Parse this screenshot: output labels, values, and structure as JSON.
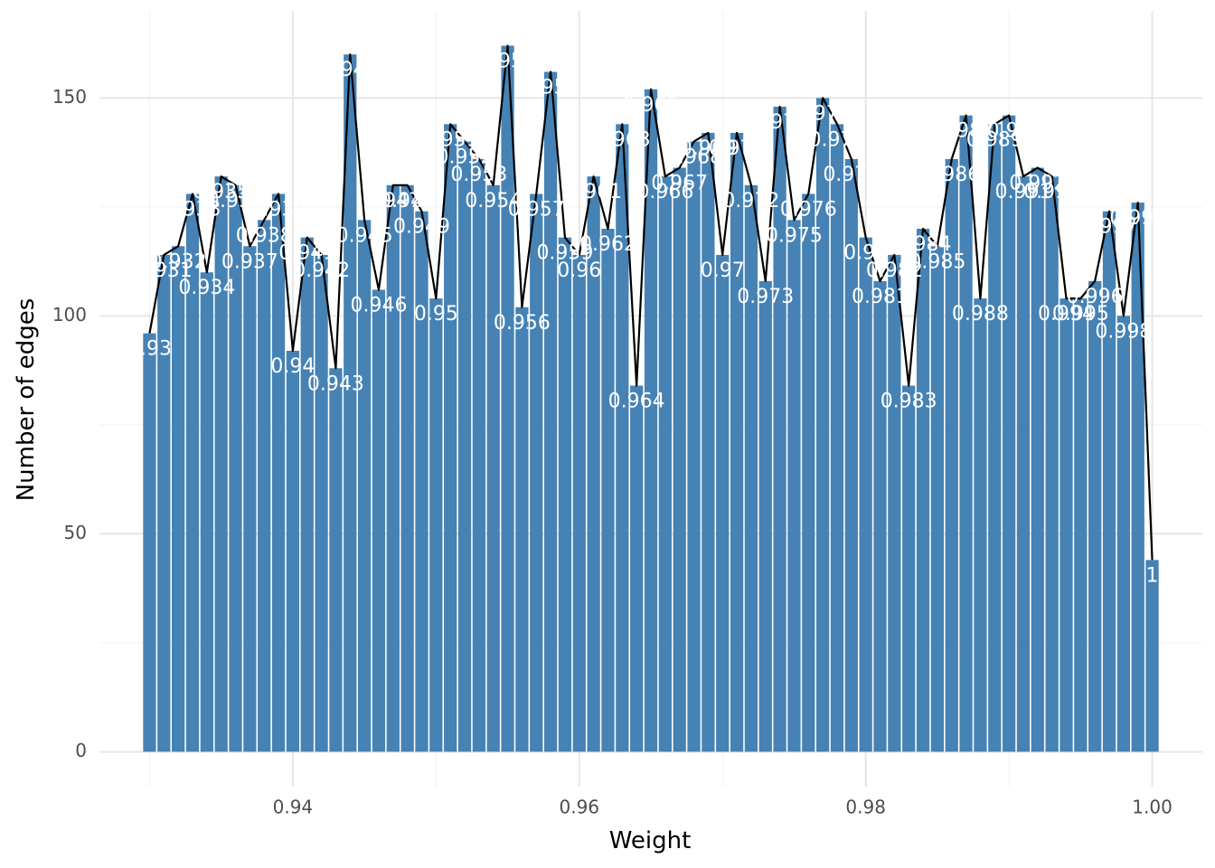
{
  "chart_data": {
    "type": "bar",
    "title": "",
    "xlabel": "Weight",
    "ylabel": "Number of edges",
    "xlim": [
      0.9265,
      1.0035
    ],
    "ylim": [
      -8,
      170
    ],
    "xticks": [
      0.94,
      0.96,
      0.98,
      1.0
    ],
    "xtick_labels": [
      "0.94",
      "0.96",
      "0.98",
      "1.00"
    ],
    "yticks": [
      0,
      50,
      100,
      150
    ],
    "ytick_labels": [
      "0",
      "50",
      "100",
      "150"
    ],
    "grid": true,
    "legend": "none",
    "bar_color": "#4682b4",
    "line_color": "#000000",
    "overlay": "line connecting bar tops",
    "x": [
      0.93,
      0.931,
      0.932,
      0.933,
      0.934,
      0.935,
      0.936,
      0.937,
      0.938,
      0.939,
      0.94,
      0.941,
      0.942,
      0.943,
      0.944,
      0.945,
      0.946,
      0.947,
      0.948,
      0.949,
      0.95,
      0.951,
      0.952,
      0.953,
      0.954,
      0.955,
      0.956,
      0.957,
      0.958,
      0.959,
      0.96,
      0.961,
      0.962,
      0.963,
      0.964,
      0.965,
      0.966,
      0.967,
      0.968,
      0.969,
      0.97,
      0.971,
      0.972,
      0.973,
      0.974,
      0.975,
      0.976,
      0.977,
      0.978,
      0.979,
      0.98,
      0.981,
      0.982,
      0.983,
      0.984,
      0.985,
      0.986,
      0.987,
      0.988,
      0.989,
      0.99,
      0.991,
      0.992,
      0.993,
      0.994,
      0.995,
      0.996,
      0.997,
      0.998,
      0.999,
      1.0
    ],
    "values": [
      96,
      114,
      116,
      128,
      110,
      132,
      130,
      116,
      122,
      128,
      92,
      118,
      114,
      88,
      160,
      122,
      106,
      130,
      130,
      124,
      104,
      144,
      140,
      136,
      130,
      162,
      102,
      128,
      156,
      118,
      114,
      132,
      120,
      144,
      84,
      152,
      132,
      134,
      140,
      142,
      114,
      142,
      130,
      108,
      148,
      122,
      128,
      150,
      144,
      136,
      118,
      108,
      114,
      84,
      120,
      116,
      136,
      146,
      104,
      144,
      146,
      132,
      134,
      132,
      104,
      104,
      108,
      124,
      100,
      126,
      44
    ],
    "data_labels": [
      "0.93",
      "0.931",
      "0.932",
      "0.933",
      "0.934",
      "0.935",
      "0.936",
      "0.937",
      "0.938",
      "0.939",
      "0.94",
      "0.941",
      "0.942",
      "0.943",
      "0.944",
      "0.945",
      "0.946",
      "0.947",
      "0.948",
      "0.949",
      "0.95",
      "0.951",
      "0.952",
      "0.953",
      "0.954",
      "0.955",
      "0.956",
      "0.957",
      "0.958",
      "0.959",
      "0.96",
      "0.961",
      "0.962",
      "0.963",
      "0.964",
      "0.965",
      "0.966",
      "0.967",
      "0.968",
      "0.969",
      "0.97",
      "0.971",
      "0.972",
      "0.973",
      "0.974",
      "0.975",
      "0.976",
      "0.977",
      "0.978",
      "0.979",
      "0.98",
      "0.981",
      "0.982",
      "0.983",
      "0.984",
      "0.985",
      "0.986",
      "0.987",
      "0.988",
      "0.989",
      "0.99",
      "0.991",
      "0.992",
      "0.993",
      "0.994",
      "0.995",
      "0.996",
      "0.997",
      "0.998",
      "0.999",
      "1"
    ]
  }
}
